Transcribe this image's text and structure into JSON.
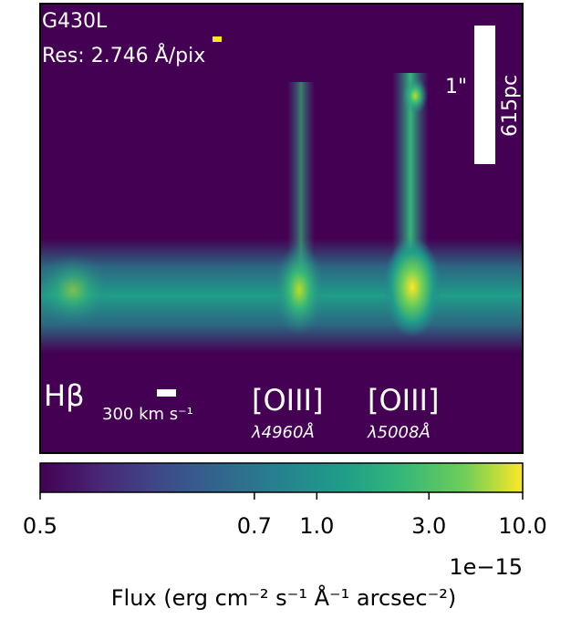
{
  "chart_data": {
    "type": "image",
    "annotations": {
      "grating": "G430L",
      "resolution": "Res: 2.746 Å/pix",
      "scale_arcsec": "1\"",
      "scale_pc": "615pc",
      "hbeta": "Hβ",
      "velocity_bar": "300 km s⁻¹",
      "oiii_1": "[OIII]",
      "oiii_1_wave": "λ4960Å",
      "oiii_2": "[OIII]",
      "oiii_2_wave": "λ5008Å"
    },
    "colorbar": {
      "label": "Flux (erg cm⁻² s⁻¹ Å⁻¹ arcsec⁻²)",
      "offset_text": "1e−15",
      "colormap": "viridis",
      "xlim": [
        0.5,
        10.0
      ],
      "xticks": [
        0.5,
        {
          "value": 0.7,
          "label": "0.7"
        },
        {
          "value": 1.0,
          "label": "1.0"
        },
        {
          "value": 3.0,
          "label": "3.0"
        },
        {
          "value": 10.0,
          "label": "10.0"
        }
      ]
    }
  }
}
